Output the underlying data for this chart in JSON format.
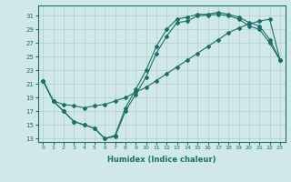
{
  "xlabel": "Humidex (Indice chaleur)",
  "xlim": [
    -0.5,
    23.5
  ],
  "ylim": [
    12.5,
    32.5
  ],
  "xticks": [
    0,
    1,
    2,
    3,
    4,
    5,
    6,
    7,
    8,
    9,
    10,
    11,
    12,
    13,
    14,
    15,
    16,
    17,
    18,
    19,
    20,
    21,
    22,
    23
  ],
  "yticks": [
    13,
    15,
    17,
    19,
    21,
    23,
    25,
    27,
    29,
    31
  ],
  "bg_color": "#d0e8e8",
  "grid_color": "#b0cece",
  "line_color": "#1a7068",
  "line1_x": [
    0,
    1,
    2,
    3,
    4,
    5,
    6,
    7,
    8,
    9,
    10,
    11,
    12,
    13,
    14,
    15,
    16,
    17,
    18,
    19,
    20,
    21,
    22,
    23
  ],
  "line1_y": [
    21.5,
    18.5,
    17.0,
    15.5,
    15.0,
    14.5,
    13.0,
    13.3,
    17.0,
    19.5,
    22.0,
    25.5,
    28.0,
    30.0,
    30.2,
    31.0,
    31.1,
    31.2,
    31.0,
    30.5,
    29.5,
    29.0,
    27.0,
    24.5
  ],
  "line2_x": [
    0,
    1,
    2,
    3,
    4,
    5,
    6,
    7,
    8,
    9,
    10,
    11,
    12,
    13,
    14,
    15,
    16,
    17,
    18,
    19,
    20,
    21,
    22,
    23
  ],
  "line2_y": [
    21.5,
    18.5,
    18.0,
    17.8,
    17.5,
    17.8,
    18.0,
    18.5,
    19.0,
    19.8,
    20.5,
    21.5,
    22.5,
    23.5,
    24.5,
    25.5,
    26.5,
    27.5,
    28.5,
    29.2,
    29.8,
    30.2,
    30.5,
    24.5
  ],
  "line3_x": [
    0,
    1,
    2,
    3,
    4,
    5,
    6,
    7,
    8,
    9,
    10,
    11,
    12,
    13,
    14,
    15,
    16,
    17,
    18,
    19,
    20,
    21,
    22,
    23
  ],
  "line3_y": [
    21.5,
    18.5,
    17.0,
    15.5,
    15.0,
    14.5,
    13.0,
    13.5,
    17.5,
    20.2,
    23.0,
    26.5,
    29.0,
    30.5,
    30.8,
    31.2,
    31.2,
    31.5,
    31.2,
    30.8,
    30.0,
    29.5,
    27.5,
    24.5
  ]
}
